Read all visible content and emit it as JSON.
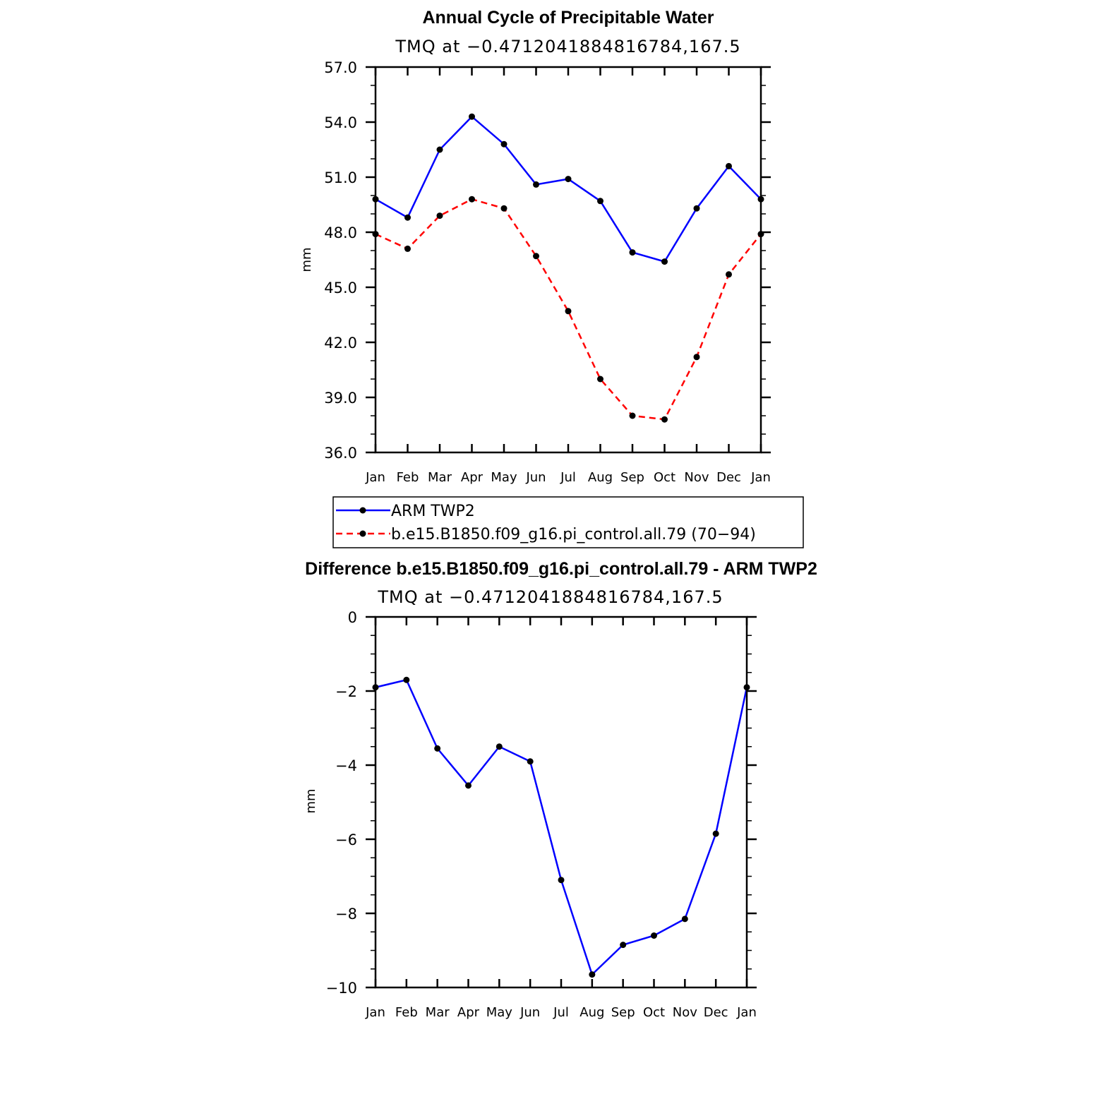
{
  "chart_data": [
    {
      "type": "line",
      "title": "Annual Cycle of Precipitable Water",
      "subtitle": "TMQ at −0.4712041884816784,167.5",
      "xlabel": "",
      "ylabel": "mm",
      "categories": [
        "Jan",
        "Feb",
        "Mar",
        "Apr",
        "May",
        "Jun",
        "Jul",
        "Aug",
        "Sep",
        "Oct",
        "Nov",
        "Dec",
        "Jan"
      ],
      "ylim": [
        36.0,
        57.0
      ],
      "yticks": [
        36.0,
        39.0,
        42.0,
        45.0,
        48.0,
        51.0,
        54.0,
        57.0
      ],
      "ytick_labels": [
        "36.0",
        "39.0",
        "42.0",
        "45.0",
        "48.0",
        "51.0",
        "54.0",
        "57.0"
      ],
      "grid": false,
      "legend_position": "bottom",
      "series": [
        {
          "name": "ARM TWP2",
          "color": "#0000ff",
          "dash": "solid",
          "marker": "circle",
          "values": [
            49.8,
            48.8,
            52.5,
            54.3,
            52.8,
            50.6,
            50.9,
            49.7,
            46.9,
            46.4,
            49.3,
            51.6,
            49.8
          ]
        },
        {
          "name": "b.e15.B1850.f09_g16.pi_control.all.79 (70−94)",
          "color": "#ff0000",
          "dash": "dashed",
          "marker": "circle",
          "values": [
            47.9,
            47.1,
            48.9,
            49.8,
            49.3,
            46.7,
            43.7,
            40.0,
            38.0,
            37.8,
            41.2,
            45.7,
            47.9
          ]
        }
      ]
    },
    {
      "type": "line",
      "title": "Difference b.e15.B1850.f09_g16.pi_control.all.79 - ARM TWP2",
      "subtitle": "TMQ at −0.4712041884816784,167.5",
      "xlabel": "",
      "ylabel": "mm",
      "categories": [
        "Jan",
        "Feb",
        "Mar",
        "Apr",
        "May",
        "Jun",
        "Jul",
        "Aug",
        "Sep",
        "Oct",
        "Nov",
        "Dec",
        "Jan"
      ],
      "ylim": [
        -10,
        0
      ],
      "yticks": [
        -10,
        -8,
        -6,
        -4,
        -2,
        0
      ],
      "ytick_labels": [
        "−10",
        "−8",
        "−6",
        "−4",
        "−2",
        "0"
      ],
      "grid": false,
      "series": [
        {
          "color": "#0000ff",
          "dash": "solid",
          "marker": "circle",
          "values": [
            -1.9,
            -1.7,
            -3.55,
            -4.55,
            -3.5,
            -3.9,
            -7.1,
            -9.65,
            -8.85,
            -8.6,
            -8.15,
            -5.85,
            -1.9
          ]
        }
      ]
    }
  ]
}
